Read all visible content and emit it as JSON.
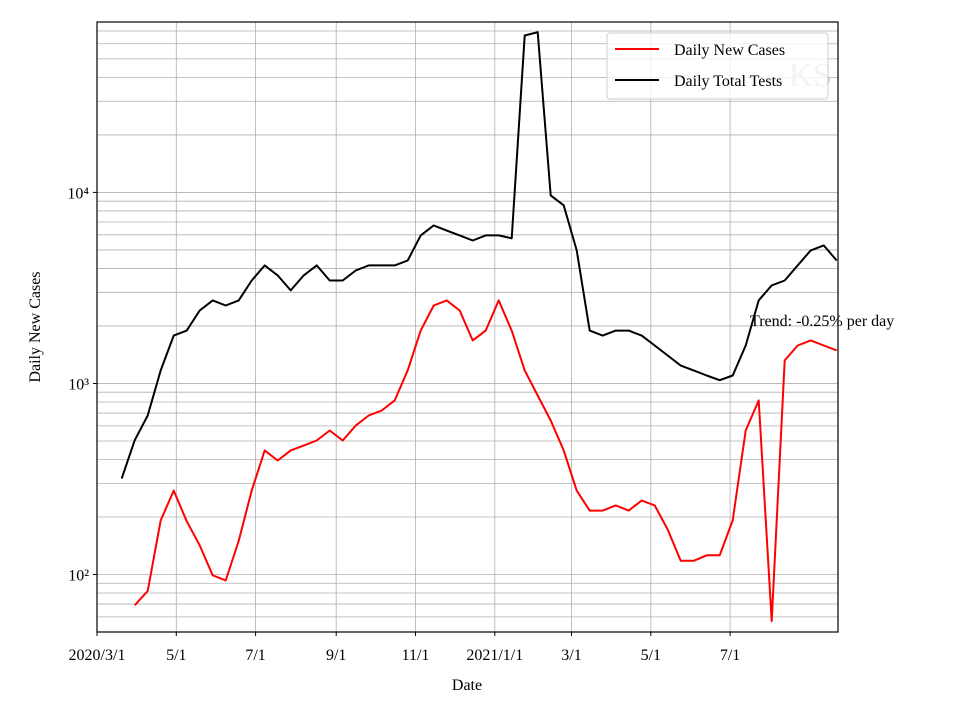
{
  "chart_data": {
    "type": "line",
    "y_label": "Daily New Cases",
    "x_label": "Date",
    "annotation": "Trend: -0.25% per day",
    "watermark": "KS",
    "log_y": true,
    "grid": true,
    "legend": "upper right",
    "x": [
      "2020-03-20",
      "2020-03-30",
      "2020-04-09",
      "2020-04-19",
      "2020-04-29",
      "2020-05-09",
      "2020-05-19",
      "2020-05-29",
      "2020-06-08",
      "2020-06-18",
      "2020-06-28",
      "2020-07-08",
      "2020-07-18",
      "2020-07-28",
      "2020-08-07",
      "2020-08-17",
      "2020-08-27",
      "2020-09-06",
      "2020-09-16",
      "2020-09-26",
      "2020-10-06",
      "2020-10-16",
      "2020-10-26",
      "2020-11-05",
      "2020-11-15",
      "2020-11-25",
      "2020-12-05",
      "2020-12-15",
      "2020-12-25",
      "2021-01-04",
      "2021-01-14",
      "2021-01-24",
      "2021-02-03",
      "2021-02-13",
      "2021-02-23",
      "2021-03-05",
      "2021-03-15",
      "2021-03-25",
      "2021-04-04",
      "2021-04-14",
      "2021-04-24",
      "2021-05-04",
      "2021-05-14",
      "2021-05-24",
      "2021-06-03",
      "2021-06-13",
      "2021-06-23",
      "2021-07-03",
      "2021-07-13",
      "2021-07-23",
      "2021-08-02",
      "2021-08-12",
      "2021-08-22",
      "2021-09-01",
      "2021-09-11",
      "2021-09-21"
    ],
    "series": [
      {
        "name": "Daily New Cases",
        "color": "#ff0000",
        "values": [
          null,
          69,
          82,
          192,
          275,
          190,
          142,
          99,
          93,
          150,
          275,
          446,
          395,
          446,
          473,
          503,
          567,
          503,
          602,
          680,
          722,
          815,
          1170,
          1890,
          2560,
          2720,
          2410,
          1680,
          1890,
          2720,
          1890,
          1170,
          865,
          640,
          446,
          275,
          216,
          216,
          230,
          216,
          244,
          230,
          172,
          118,
          118,
          126,
          126,
          192,
          567,
          815,
          57,
          1320,
          1580,
          1680,
          1580,
          1490
        ]
      },
      {
        "name": "Daily Total Tests",
        "color": "#000000",
        "values": [
          318,
          504,
          680,
          1170,
          1780,
          1890,
          2410,
          2720,
          2560,
          2720,
          3460,
          4150,
          3680,
          3070,
          3680,
          4150,
          3460,
          3460,
          3900,
          4150,
          4150,
          4150,
          4400,
          5960,
          6720,
          6310,
          5960,
          5600,
          5960,
          5960,
          5750,
          66300,
          69000,
          9650,
          8560,
          4970,
          1890,
          1780,
          1890,
          1890,
          1780,
          1580,
          1400,
          1240,
          1170,
          1100,
          1040,
          1100,
          1580,
          2720,
          3260,
          3460,
          4150,
          4970,
          5280,
          4400
        ]
      }
    ],
    "xlim": [
      "2020-03-01",
      "2021-09-22"
    ],
    "xticks": [
      {
        "value": "2020-03-01",
        "label": "2020/3/1"
      },
      {
        "value": "2020-05-01",
        "label": "5/1"
      },
      {
        "value": "2020-07-01",
        "label": "7/1"
      },
      {
        "value": "2020-09-01",
        "label": "9/1"
      },
      {
        "value": "2020-11-01",
        "label": "11/1"
      },
      {
        "value": "2021-01-01",
        "label": "2021/1/1"
      },
      {
        "value": "2021-03-01",
        "label": "3/1"
      },
      {
        "value": "2021-05-01",
        "label": "5/1"
      },
      {
        "value": "2021-07-01",
        "label": "7/1"
      }
    ],
    "ylim": [
      50,
      78000
    ],
    "yticks": [
      {
        "value": 100,
        "label": "10²"
      },
      {
        "value": 1000,
        "label": "10³"
      },
      {
        "value": 10000,
        "label": "10⁴"
      }
    ],
    "yticks_minor": [
      50,
      60,
      70,
      80,
      90,
      200,
      300,
      400,
      500,
      600,
      700,
      800,
      900,
      2000,
      3000,
      4000,
      5000,
      6000,
      7000,
      8000,
      9000,
      20000,
      30000,
      40000,
      50000,
      60000,
      70000
    ]
  }
}
